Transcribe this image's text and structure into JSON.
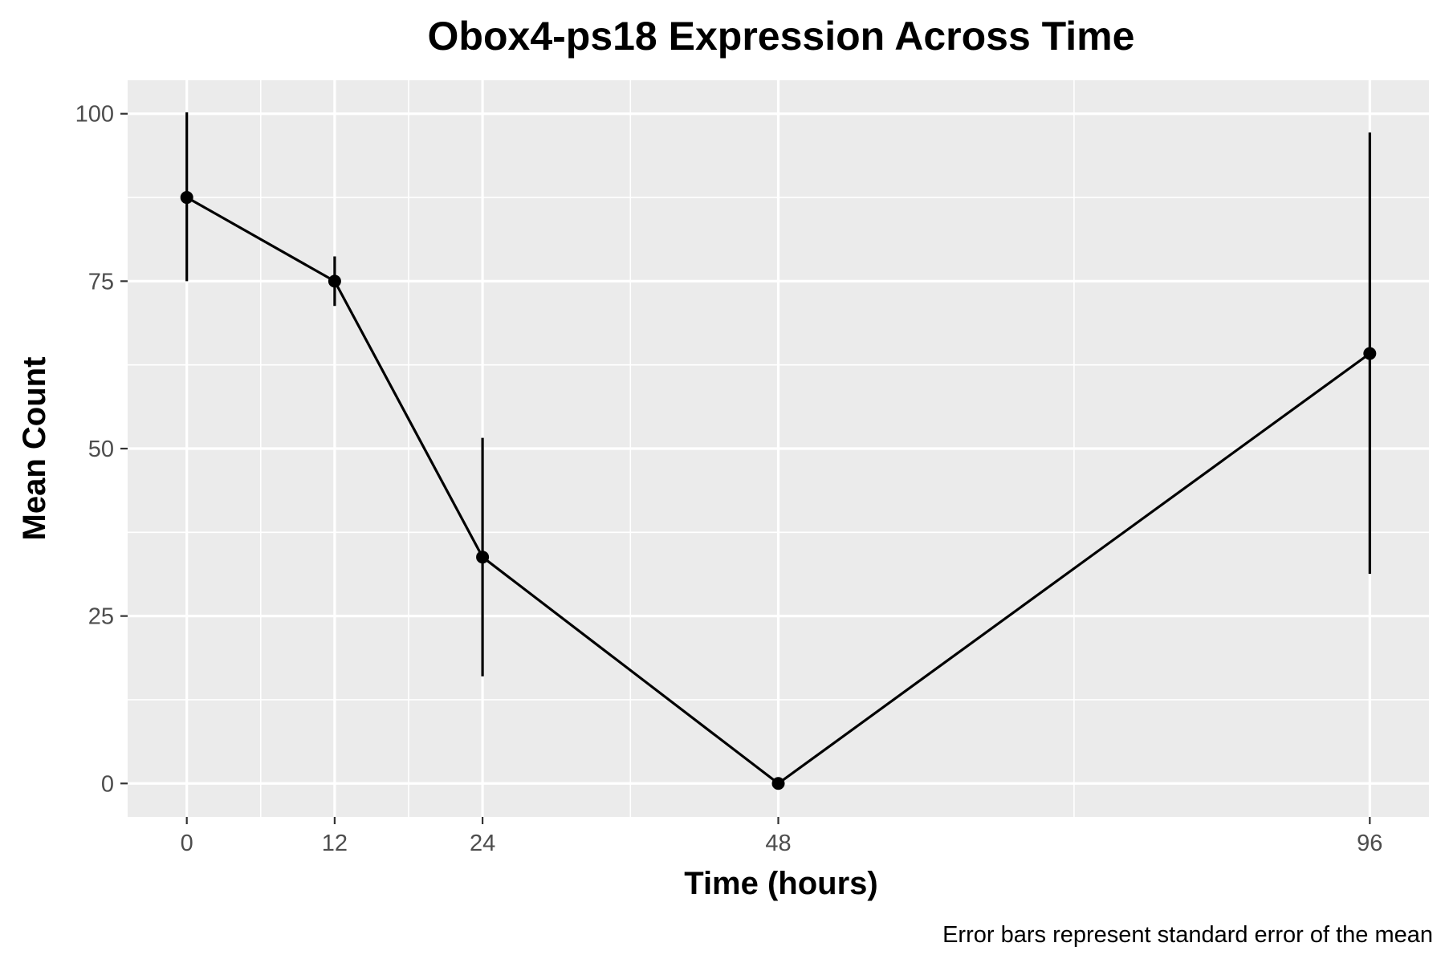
{
  "chart_data": {
    "type": "line",
    "title": "Obox4-ps18 Expression Across Time",
    "xlabel": "Time (hours)",
    "ylabel": "Mean Count",
    "caption": "Error bars represent standard error of the mean",
    "x": [
      0,
      12,
      24,
      48,
      96
    ],
    "x_ticks": [
      0,
      12,
      24,
      48,
      96
    ],
    "y_ticks": [
      0,
      25,
      50,
      75,
      100
    ],
    "xlim": [
      -4.8,
      100.8
    ],
    "ylim": [
      -5,
      105
    ],
    "series": [
      {
        "values": [
          87.5,
          75,
          33.8,
          0,
          64.2
        ],
        "error_lower": [
          75,
          71.3,
          16,
          0,
          31.3
        ],
        "error_upper": [
          100.2,
          78.7,
          51.6,
          0,
          97.2
        ],
        "color": "#000000"
      }
    ],
    "panel_background": "#ebebeb",
    "grid": true
  }
}
